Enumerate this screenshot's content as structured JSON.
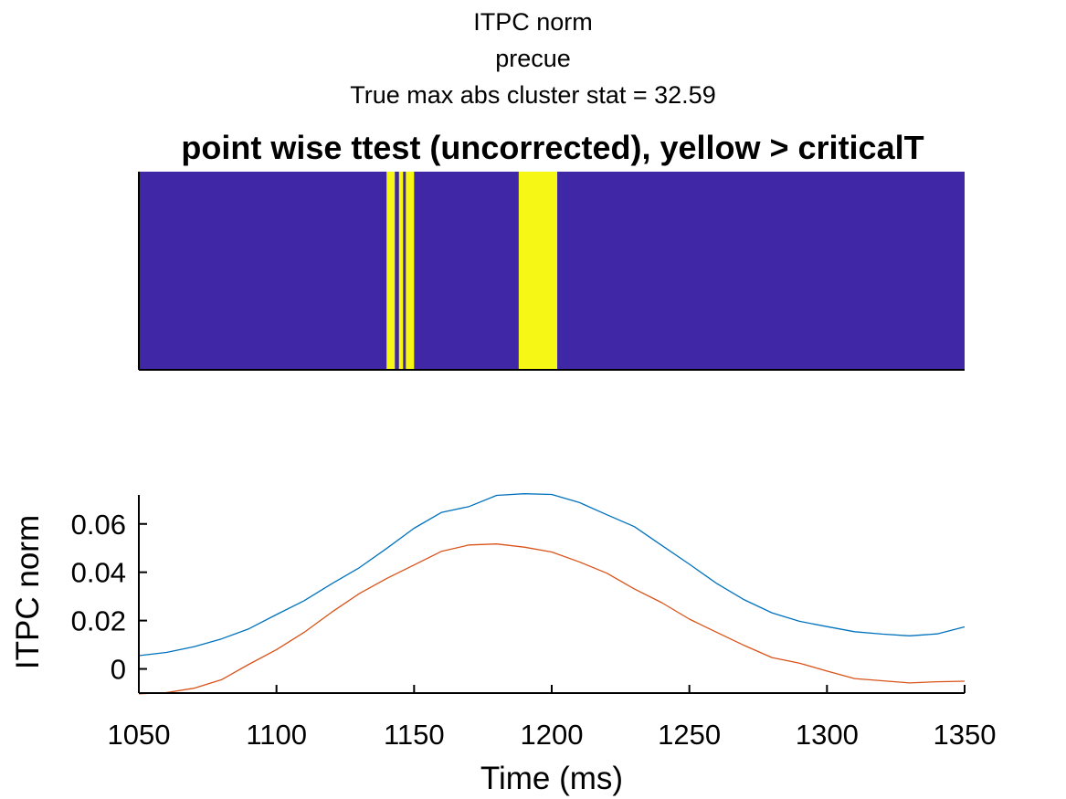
{
  "figure": {
    "title_lines": [
      "ITPC norm",
      "precue",
      "True max abs cluster stat = 32.59"
    ]
  },
  "chart_data": [
    {
      "type": "heatmap",
      "title": "point wise ttest (uncorrected), yellow > criticalT",
      "xlim": [
        1050,
        1350
      ],
      "colors": {
        "below": "#3f27a6",
        "above": "#f7f715"
      },
      "significant_intervals": [
        [
          1140,
          1143
        ],
        [
          1144.5,
          1146
        ],
        [
          1147,
          1150
        ],
        [
          1188,
          1202
        ]
      ]
    },
    {
      "type": "line",
      "title": "",
      "xlabel": "Time (ms)",
      "ylabel": "ITPC norm",
      "xlim": [
        1050,
        1350
      ],
      "ylim": [
        -0.01,
        0.072
      ],
      "xticks": [
        1050,
        1100,
        1150,
        1200,
        1250,
        1300,
        1350
      ],
      "yticks": [
        0,
        0.02,
        0.04,
        0.06
      ],
      "ytick_labels": [
        "0",
        "0.02",
        "0.04",
        "0.06"
      ],
      "x": [
        1050,
        1060,
        1070,
        1080,
        1090,
        1100,
        1110,
        1120,
        1130,
        1140,
        1150,
        1160,
        1170,
        1180,
        1190,
        1200,
        1210,
        1220,
        1230,
        1240,
        1250,
        1260,
        1270,
        1280,
        1290,
        1300,
        1310,
        1320,
        1330,
        1340,
        1350
      ],
      "series": [
        {
          "color": "#0072bd",
          "values": [
            0.0055,
            0.0068,
            0.0092,
            0.0124,
            0.0166,
            0.0225,
            0.0282,
            0.0352,
            0.0418,
            0.0498,
            0.0582,
            0.0648,
            0.0672,
            0.0718,
            0.0725,
            0.0722,
            0.0689,
            0.0638,
            0.0589,
            0.0511,
            0.0433,
            0.0353,
            0.0286,
            0.0232,
            0.0197,
            0.0175,
            0.0154,
            0.0144,
            0.0137,
            0.0145,
            0.0174
          ]
        },
        {
          "color": "#d95319",
          "values": [
            -0.0103,
            -0.0098,
            -0.008,
            -0.0045,
            0.0019,
            0.008,
            0.0151,
            0.0234,
            0.0311,
            0.0374,
            0.043,
            0.0487,
            0.0513,
            0.0517,
            0.0504,
            0.0484,
            0.0443,
            0.0396,
            0.0331,
            0.0274,
            0.0206,
            0.0151,
            0.0097,
            0.0047,
            0.0024,
            -0.0009,
            -0.004,
            -0.0049,
            -0.0058,
            -0.0053,
            -0.0051
          ]
        }
      ]
    }
  ]
}
